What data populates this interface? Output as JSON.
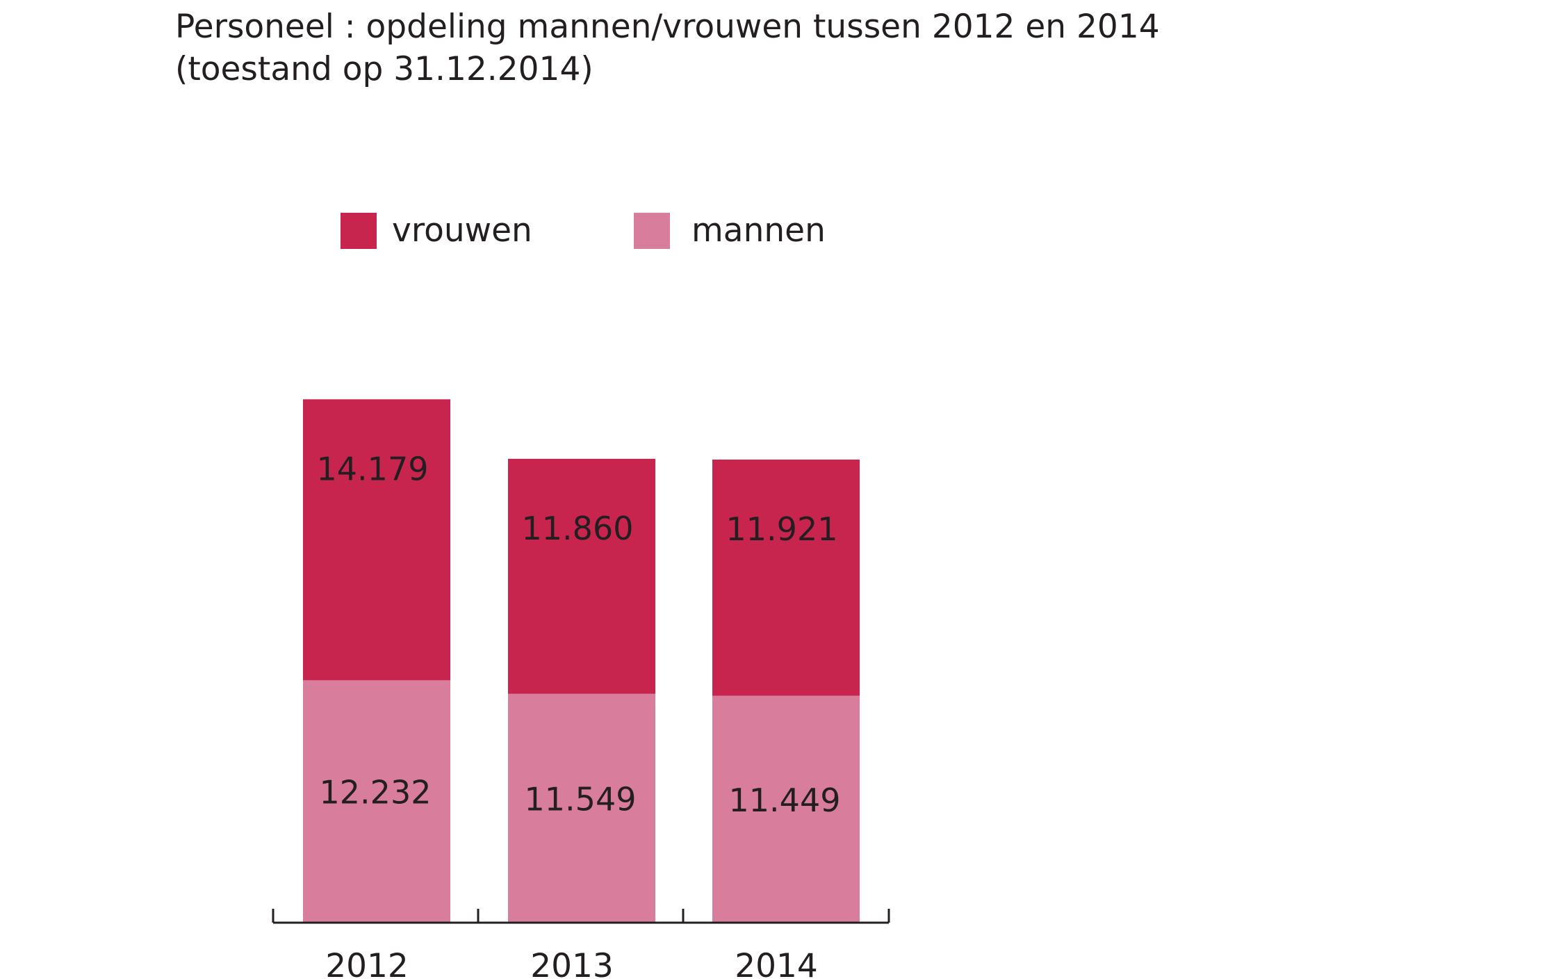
{
  "chart_title": {
    "line1": "Personeel : opdeling mannen/vrouwen tussen 2012 en 2014",
    "line2": "(toestand op 31.12.2014)"
  },
  "legend": {
    "items": [
      {
        "label": "vrouwen",
        "color": "#c7254e"
      },
      {
        "label": "mannen",
        "color": "#d87d9b"
      }
    ]
  },
  "chart_data": {
    "type": "bar",
    "stacked": true,
    "title": "Personeel : opdeling mannen/vrouwen tussen 2012 en 2014 (toestand op 31.12.2014)",
    "categories": [
      "2012",
      "2013",
      "2014"
    ],
    "series": [
      {
        "name": "mannen",
        "values": [
          12232,
          11549,
          11449
        ],
        "labels": [
          "12.232",
          "11.549",
          "11.449"
        ],
        "color": "#d87d9b"
      },
      {
        "name": "vrouwen",
        "values": [
          14179,
          11860,
          11921
        ],
        "labels": [
          "14.179",
          "11.860",
          "11.921"
        ],
        "color": "#c7254e"
      }
    ],
    "xlabel": "",
    "ylabel": "",
    "grid": false,
    "legend_position": "top"
  }
}
